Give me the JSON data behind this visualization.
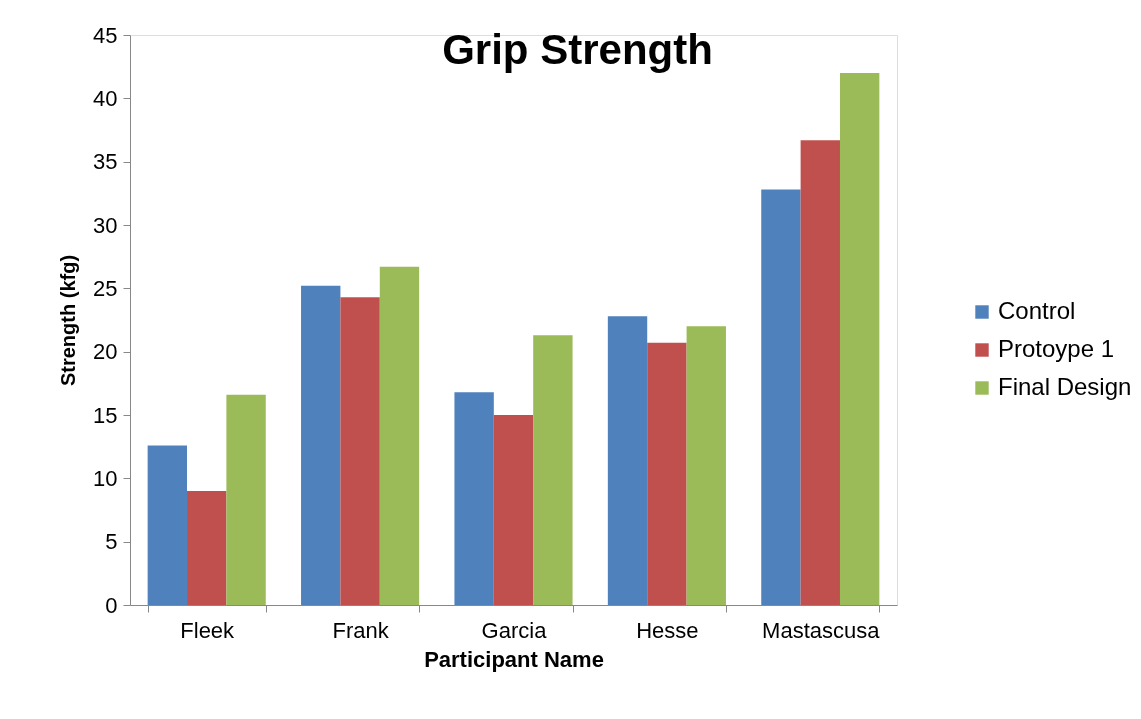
{
  "chart_data": {
    "type": "bar",
    "title": "Grip Strength",
    "xlabel": "Participant Name",
    "ylabel": "Strength (kfg)",
    "categories": [
      "Fleek",
      "Frank",
      "Garcia",
      "Hesse",
      "Mastascusa"
    ],
    "series": [
      {
        "name": "Control",
        "color": "#4f81bd",
        "values": [
          12.6,
          25.2,
          16.8,
          22.8,
          32.8
        ]
      },
      {
        "name": "Protoype 1",
        "color": "#c0504d",
        "values": [
          9.0,
          24.3,
          15.0,
          20.7,
          36.7
        ]
      },
      {
        "name": "Final Design",
        "color": "#9bbb59",
        "values": [
          16.6,
          26.7,
          21.3,
          22.0,
          42.0
        ]
      }
    ],
    "ylim": [
      0,
      45
    ],
    "yticks": [
      0,
      5,
      10,
      15,
      20,
      25,
      30,
      35,
      40,
      45
    ],
    "grid": false,
    "legend": "right"
  }
}
